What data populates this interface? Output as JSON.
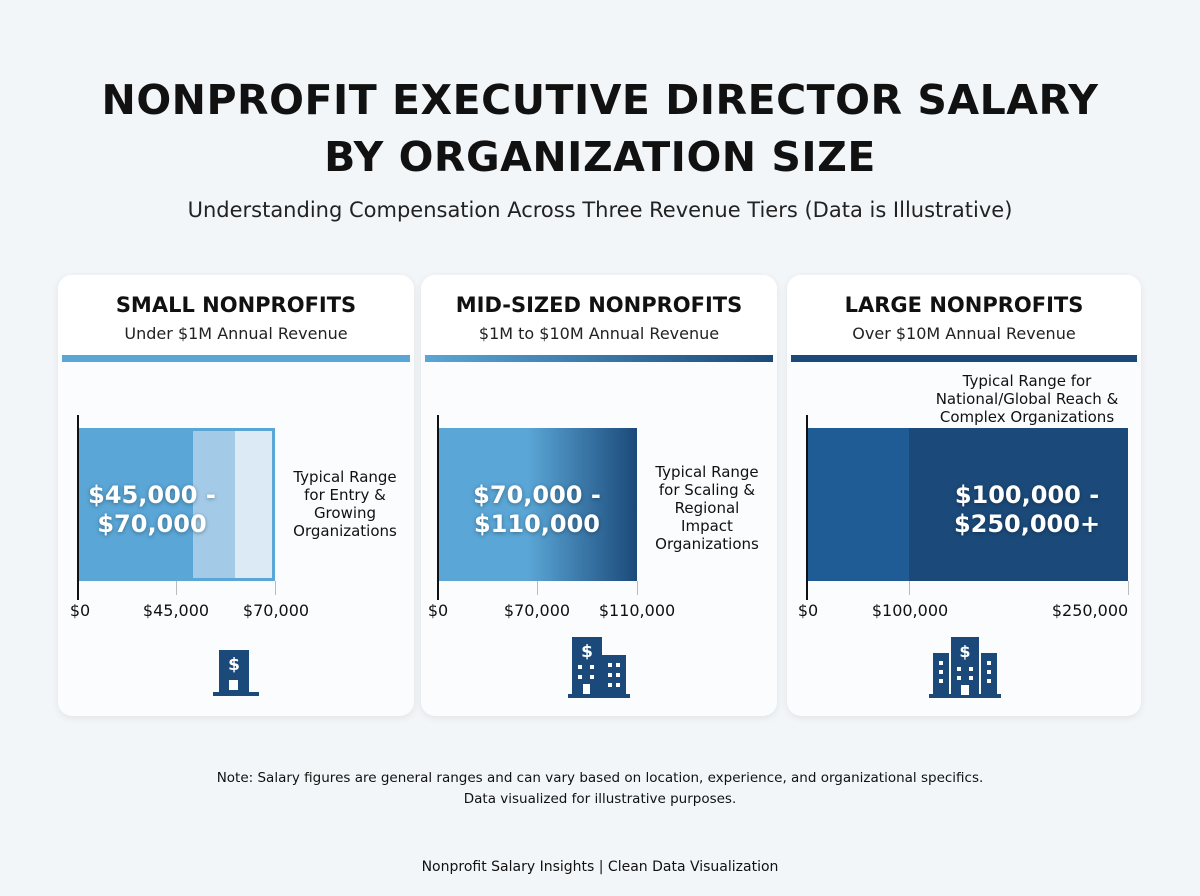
{
  "title_line1": "NONPROFIT EXECUTIVE DIRECTOR SALARY",
  "title_line2": "BY ORGANIZATION SIZE",
  "subtitle": "Understanding Compensation Across Three Revenue Tiers (Data is Illustrative)",
  "colors": {
    "light_blue": "#5aa6d6",
    "dark_blue": "#1b4a7a",
    "mid_blue": "#1f5c95"
  },
  "chart_data": [
    {
      "type": "bar",
      "title": "SMALL NONPROFITS",
      "subtitle": "Under $1M Annual Revenue",
      "range": [
        45000,
        70000
      ],
      "range_label_line1": "$45,000 -",
      "range_label_line2": "$70,000",
      "description": [
        "Typical Range",
        "for Entry &",
        "Growing",
        "Organizations"
      ],
      "ticks": [
        "$0",
        "$45,000",
        "$70,000"
      ],
      "icon": "small-building-dollar-icon"
    },
    {
      "type": "bar",
      "title": "MID-SIZED NONPROFITS",
      "subtitle": "$1M to $10M Annual Revenue",
      "range": [
        70000,
        110000
      ],
      "range_label_line1": "$70,000 -",
      "range_label_line2": "$110,000",
      "description": [
        "Typical Range",
        "for Scaling &",
        "Regional",
        "Impact",
        "Organizations"
      ],
      "ticks": [
        "$0",
        "$70,000",
        "$110,000"
      ],
      "icon": "mid-building-dollar-icon"
    },
    {
      "type": "bar",
      "title": "LARGE NONPROFITS",
      "subtitle": "Over $10M Annual Revenue",
      "range": [
        100000,
        250000
      ],
      "range_label_line1": "$100,000 -",
      "range_label_line2": "$250,000+",
      "description": [
        "Typical Range for",
        "National/Global Reach &",
        "Complex Organizations"
      ],
      "ticks": [
        "$0",
        "$100,000",
        "$250,000"
      ],
      "icon": "large-building-dollar-icon"
    }
  ],
  "note_line1": "Note: Salary figures are general ranges and can vary based on location, experience, and organizational specifics.",
  "note_line2": "Data visualized for illustrative purposes.",
  "footer": "Nonprofit Salary Insights | Clean Data Visualization"
}
